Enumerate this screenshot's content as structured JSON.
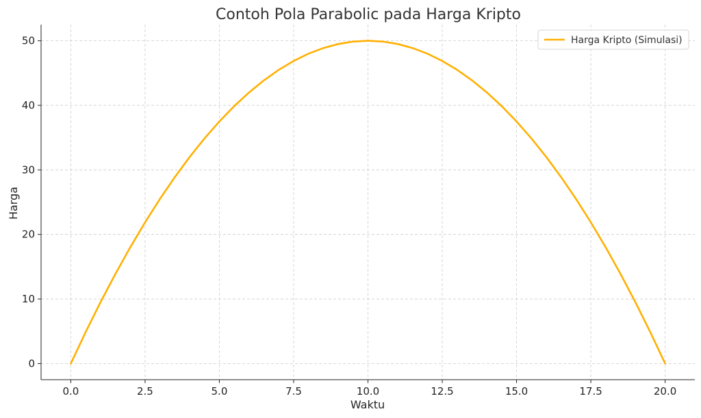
{
  "chart_data": {
    "type": "line",
    "title": "Contoh Pola Parabolic pada Harga Kripto",
    "xlabel": "Waktu",
    "ylabel": "Harga",
    "xlim": [
      -1,
      21
    ],
    "ylim": [
      -2.5,
      52.5
    ],
    "x_ticks": [
      0,
      2.5,
      5,
      7.5,
      10,
      12.5,
      15,
      17.5,
      20
    ],
    "x_tick_labels": [
      "0.0",
      "2.5",
      "5.0",
      "7.5",
      "10.0",
      "12.5",
      "15.0",
      "17.5",
      "20.0"
    ],
    "y_ticks": [
      0,
      10,
      20,
      30,
      40,
      50
    ],
    "y_tick_labels": [
      "0",
      "10",
      "20",
      "30",
      "40",
      "50"
    ],
    "grid": true,
    "legend_position": "top-right",
    "series": [
      {
        "name": "Harga Kripto (Simulasi)",
        "color": "#FFB000",
        "x": [
          0,
          0.5,
          1,
          1.5,
          2,
          2.5,
          3,
          3.5,
          4,
          4.5,
          5,
          5.5,
          6,
          6.5,
          7,
          7.5,
          8,
          8.5,
          9,
          9.5,
          10,
          10.5,
          11,
          11.5,
          12,
          12.5,
          13,
          13.5,
          14,
          14.5,
          15,
          15.5,
          16,
          16.5,
          17,
          17.5,
          18,
          18.5,
          19,
          19.5,
          20
        ],
        "y": [
          0,
          4.875,
          9.5,
          13.875,
          18,
          21.875,
          25.5,
          28.875,
          32,
          34.875,
          37.5,
          39.875,
          42,
          43.875,
          45.5,
          46.875,
          48,
          48.875,
          49.5,
          49.875,
          50,
          49.875,
          49.5,
          48.875,
          48,
          46.875,
          45.5,
          43.875,
          42,
          39.875,
          37.5,
          34.875,
          32,
          28.875,
          25.5,
          21.875,
          18,
          13.875,
          9.5,
          4.875,
          0
        ]
      }
    ]
  }
}
